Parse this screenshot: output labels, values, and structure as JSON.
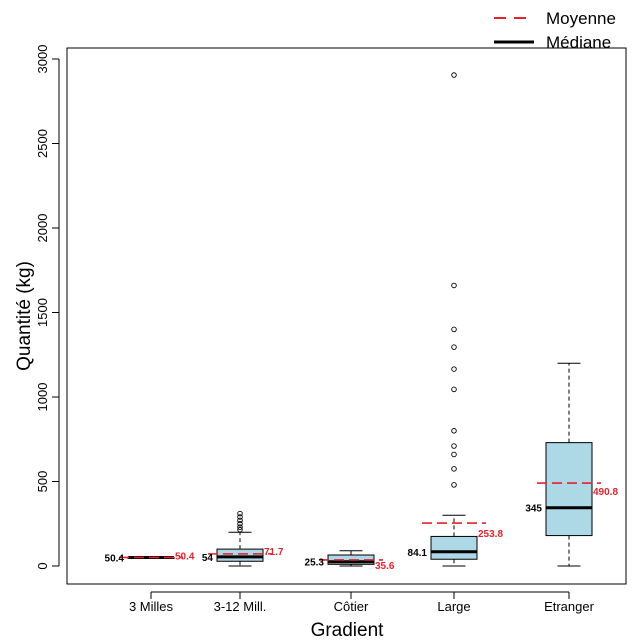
{
  "chart_data": {
    "type": "box",
    "xlabel": "Gradient",
    "ylabel": "Quantité (kg)",
    "ylim": [
      -60,
      3020
    ],
    "yticks": [
      0,
      500,
      1000,
      1500,
      2000,
      2500,
      3000
    ],
    "categories": [
      "3 Milles",
      "3-12 Mill.",
      "Côtier",
      "Large",
      "Etranger"
    ],
    "boxes": [
      {
        "category": "3 Milles",
        "min": 50.4,
        "q1": 50.4,
        "median": 50.4,
        "q3": 50.4,
        "max": 50.4,
        "mean": 50.4,
        "outliers": [],
        "median_label": "50.4",
        "mean_label": "50.4"
      },
      {
        "category": "3-12 Mill.",
        "min": 0,
        "q1": 28,
        "median": 54,
        "q3": 100,
        "max": 200,
        "mean": 71.7,
        "outliers": [
          215,
          230,
          250,
          270,
          290,
          310
        ],
        "median_label": "54",
        "mean_label": "71.7"
      },
      {
        "category": "Côtier",
        "min": 0,
        "q1": 10,
        "median": 25.3,
        "q3": 65,
        "max": 90,
        "mean": 35.6,
        "outliers": [],
        "median_label": "25.3",
        "mean_label": "35.6"
      },
      {
        "category": "Large",
        "min": 0,
        "q1": 40,
        "median": 84.1,
        "q3": 175,
        "max": 300,
        "mean": 253.8,
        "outliers": [
          480,
          575,
          660,
          710,
          800,
          1045,
          1165,
          1295,
          1400,
          1660,
          2905
        ],
        "median_label": "84.1",
        "mean_label": "253.8"
      },
      {
        "category": "Etranger",
        "min": 0,
        "q1": 180,
        "median": 345,
        "q3": 730,
        "max": 1200,
        "mean": 490.8,
        "outliers": [],
        "median_label": "345",
        "mean_label": "490.8"
      }
    ],
    "legend": {
      "position": "top-right",
      "entries": [
        {
          "label": "Moyenne",
          "style": "dashed",
          "color": "#e8202a"
        },
        {
          "label": "Médiane",
          "style": "solid",
          "color": "#000000"
        }
      ]
    },
    "colors": {
      "box_fill": "#add8e6",
      "mean": "#e8202a",
      "median": "#000000"
    }
  }
}
